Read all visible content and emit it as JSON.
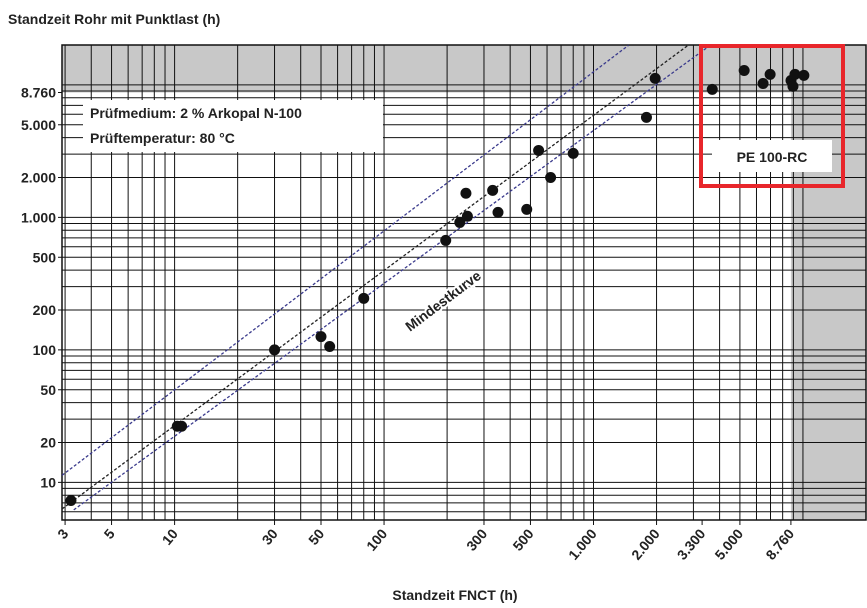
{
  "chart_data": {
    "type": "scatter",
    "title": "Standzeit Rohr mit Punktlast (h)",
    "x_label": "Standzeit FNCT (h)",
    "annotations": [
      "Prüfmedium: 2 % Arkopal N-100",
      "Prüftemperatur: 80 °C",
      "Mindestkurve",
      "PE 100-RC"
    ],
    "log_scale": true,
    "xlim": [
      2.9,
      20000
    ],
    "ylim": [
      5.2,
      20000
    ],
    "xticks": [
      3,
      5,
      10,
      30,
      50,
      100,
      300,
      500,
      {
        "value": 1000,
        "label": "1.000"
      },
      {
        "value": 2000,
        "label": "2.000"
      },
      {
        "value": 3300,
        "label": "3.300"
      },
      {
        "value": 5000,
        "label": "5.000"
      },
      {
        "value": 8760,
        "label": "8.760"
      }
    ],
    "yticks": [
      10,
      20,
      50,
      100,
      200,
      500,
      {
        "value": 1000,
        "label": "1.000"
      },
      {
        "value": 2000,
        "label": "2.000"
      },
      {
        "value": 5000,
        "label": "5.000"
      },
      {
        "value": 8760,
        "label": "8.760"
      }
    ],
    "xgrid": [
      3,
      4,
      5,
      6,
      7,
      8,
      9,
      10,
      20,
      30,
      40,
      50,
      60,
      70,
      80,
      90,
      100,
      200,
      300,
      400,
      500,
      600,
      700,
      800,
      900,
      1000,
      2000,
      3000,
      4000,
      5000,
      6000,
      7000,
      8000,
      9000,
      10000
    ],
    "ygrid": [
      6,
      7,
      8,
      9,
      10,
      20,
      30,
      40,
      50,
      60,
      70,
      80,
      90,
      100,
      200,
      300,
      400,
      500,
      600,
      700,
      800,
      900,
      1000,
      2000,
      3000,
      4000,
      5000,
      6000,
      7000,
      8000,
      9000,
      10000
    ],
    "shade_from": {
      "x": 8760,
      "y": 8760
    },
    "shade_color": "#c8c8c8",
    "highlight_color": "#e8262b",
    "series": [
      {
        "color": "#111111",
        "x": [
          3.2,
          10.3,
          10.8,
          30,
          50,
          55,
          80,
          197,
          230,
          250,
          246,
          330,
          350,
          480,
          547,
          624,
          800,
          1790,
          1970,
          3690,
          5240,
          6450,
          6970,
          8770,
          8960,
          9160,
          10100
        ],
        "values": [
          7.3,
          26.5,
          26.5,
          100,
          126,
          106,
          245,
          670,
          916,
          1020,
          1520,
          1600,
          1090,
          1150,
          3200,
          2000,
          3040,
          5690,
          11200,
          9250,
          12850,
          10250,
          12000,
          10800,
          9750,
          12000,
          11800
        ]
      }
    ],
    "lines": [
      {
        "color": "#222222",
        "x": [
          2.9,
          2830
        ],
        "values": [
          6.3,
          19900
        ]
      },
      {
        "color": "#3a3a8c",
        "x": [
          2.9,
          1470
        ],
        "values": [
          11.3,
          19900
        ]
      },
      {
        "color": "#3a3a8c",
        "x": [
          3.3,
          3610
        ],
        "values": [
          6.2,
          19900
        ]
      }
    ]
  }
}
